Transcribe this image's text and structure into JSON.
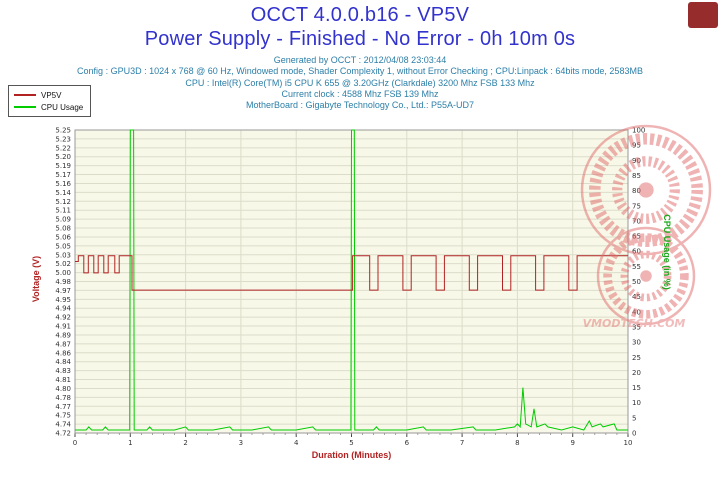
{
  "header": {
    "title_line1": "OCCT 4.0.0.b16 - VP5V",
    "title_line2": "Power Supply - Finished - No Error - 0h 10m 0s",
    "title_color": "#3232cc",
    "info_color": "#2c7fa8",
    "info_lines": [
      "Generated by OCCT : 2012/04/08 23:03:44",
      "Config : GPU3D : 1024 x 768 @ 60 Hz, Windowed mode, Shader Complexity 1, without Error Checking ; CPU:Linpack : 64bits mode, 2583MB",
      "CPU : Intel(R) Core(TM) i5 CPU K 655 @ 3.20GHz (Clarkdale) 3200 Mhz FSB 133 Mhz",
      "Current clock : 4588 Mhz FSB 139 Mhz",
      "MotherBoard : Gigabyte Technology Co., Ltd.: P55A-UD7"
    ]
  },
  "legend": {
    "items": [
      {
        "label": "VP5V",
        "color": "#b22222"
      },
      {
        "label": "CPU Usage",
        "color": "#00cc00"
      }
    ]
  },
  "watermark": {
    "text": "VMODTECH.COM",
    "color": "#e06a6a"
  },
  "chart_data": {
    "type": "line",
    "title": "OCCT 4.0.0.b16 - VP5V - Power Supply - Finished - No Error - 0h 10m 0s",
    "plot_bg": "#f8f8e8",
    "grid_color": "#dcdccb",
    "grid": true,
    "legend_position": "top-left",
    "x_axis": {
      "label": "Duration (Minutes)",
      "color": "#b22222",
      "min": 0,
      "max": 10,
      "minor_step": 0.2,
      "major_ticks": [
        "0",
        "1",
        "2",
        "3",
        "4",
        "5",
        "6",
        "7",
        "8",
        "9",
        "10"
      ]
    },
    "y_left": {
      "label": "Voltage (V)",
      "color": "#b22222",
      "min": 4.72,
      "max": 5.25,
      "ticks": [
        "5.25",
        "5.23",
        "5.22",
        "5.20",
        "5.19",
        "5.17",
        "5.16",
        "5.14",
        "5.12",
        "5.11",
        "5.09",
        "5.08",
        "5.06",
        "5.05",
        "5.03",
        "5.02",
        "5.00",
        "4.98",
        "4.97",
        "4.95",
        "4.94",
        "4.92",
        "4.91",
        "4.89",
        "4.87",
        "4.86",
        "4.84",
        "4.83",
        "4.81",
        "4.80",
        "4.78",
        "4.77",
        "4.75",
        "4.74",
        "4.72"
      ]
    },
    "y_right": {
      "label": "CPU Usage (in %)",
      "color": "#1ca81c",
      "min": 0,
      "max": 100,
      "ticks": [
        "100",
        "95",
        "90",
        "85",
        "80",
        "75",
        "70",
        "65",
        "60",
        "55",
        "50",
        "45",
        "40",
        "35",
        "30",
        "25",
        "20",
        "15",
        "10",
        "5",
        "0"
      ]
    },
    "series": [
      {
        "name": "CPU Usage",
        "axis": "right",
        "color": "#00cc00",
        "points": [
          [
            0,
            1
          ],
          [
            0.2,
            1
          ],
          [
            0.25,
            2
          ],
          [
            0.3,
            1
          ],
          [
            0.5,
            1
          ],
          [
            0.55,
            2
          ],
          [
            0.6,
            1
          ],
          [
            0.99,
            1
          ],
          [
            1.0,
            100
          ],
          [
            1.06,
            100
          ],
          [
            1.07,
            1
          ],
          [
            1.3,
            1
          ],
          [
            1.35,
            2
          ],
          [
            1.4,
            1
          ],
          [
            1.8,
            1
          ],
          [
            2.0,
            2
          ],
          [
            2.05,
            1
          ],
          [
            2.5,
            1
          ],
          [
            2.8,
            2
          ],
          [
            2.85,
            1
          ],
          [
            3.2,
            1
          ],
          [
            3.5,
            2
          ],
          [
            3.55,
            1
          ],
          [
            4.0,
            1
          ],
          [
            4.3,
            2
          ],
          [
            4.35,
            1
          ],
          [
            4.7,
            1
          ],
          [
            4.99,
            1
          ],
          [
            5.0,
            100
          ],
          [
            5.05,
            100
          ],
          [
            5.06,
            1
          ],
          [
            5.4,
            1
          ],
          [
            5.45,
            2
          ],
          [
            5.5,
            1
          ],
          [
            6.0,
            1
          ],
          [
            6.3,
            2
          ],
          [
            6.35,
            1
          ],
          [
            6.8,
            1
          ],
          [
            7.2,
            2
          ],
          [
            7.25,
            1
          ],
          [
            7.6,
            1
          ],
          [
            7.95,
            2
          ],
          [
            8.0,
            3
          ],
          [
            8.05,
            2
          ],
          [
            8.1,
            15
          ],
          [
            8.15,
            3
          ],
          [
            8.25,
            2
          ],
          [
            8.3,
            8
          ],
          [
            8.35,
            2
          ],
          [
            8.5,
            3
          ],
          [
            8.55,
            2
          ],
          [
            8.8,
            1
          ],
          [
            9.0,
            2
          ],
          [
            9.2,
            1
          ],
          [
            9.3,
            4
          ],
          [
            9.35,
            2
          ],
          [
            9.5,
            3
          ],
          [
            9.55,
            2
          ],
          [
            9.75,
            3
          ],
          [
            9.8,
            1
          ],
          [
            10,
            1
          ]
        ]
      },
      {
        "name": "VP5V",
        "axis": "left",
        "color": "#b22222",
        "points": [
          [
            0,
            5.02
          ],
          [
            0.06,
            5.02
          ],
          [
            0.06,
            5.03
          ],
          [
            0.16,
            5.03
          ],
          [
            0.16,
            5.0
          ],
          [
            0.24,
            5.0
          ],
          [
            0.24,
            5.03
          ],
          [
            0.34,
            5.03
          ],
          [
            0.34,
            5.0
          ],
          [
            0.42,
            5.0
          ],
          [
            0.42,
            5.03
          ],
          [
            0.52,
            5.03
          ],
          [
            0.52,
            5.0
          ],
          [
            0.6,
            5.0
          ],
          [
            0.6,
            5.03
          ],
          [
            0.72,
            5.03
          ],
          [
            0.72,
            5.0
          ],
          [
            0.8,
            5.0
          ],
          [
            0.8,
            5.03
          ],
          [
            1.03,
            5.03
          ],
          [
            1.03,
            4.97
          ],
          [
            5.02,
            4.97
          ],
          [
            5.02,
            5.03
          ],
          [
            5.33,
            5.03
          ],
          [
            5.33,
            4.97
          ],
          [
            5.48,
            4.97
          ],
          [
            5.48,
            5.03
          ],
          [
            5.93,
            5.03
          ],
          [
            5.93,
            4.97
          ],
          [
            6.08,
            4.97
          ],
          [
            6.08,
            5.03
          ],
          [
            6.53,
            5.03
          ],
          [
            6.53,
            4.97
          ],
          [
            6.68,
            4.97
          ],
          [
            6.68,
            5.03
          ],
          [
            7.13,
            5.03
          ],
          [
            7.13,
            4.97
          ],
          [
            7.28,
            4.97
          ],
          [
            7.28,
            5.03
          ],
          [
            7.73,
            5.03
          ],
          [
            7.73,
            4.97
          ],
          [
            7.88,
            4.97
          ],
          [
            7.88,
            5.03
          ],
          [
            8.33,
            5.03
          ],
          [
            8.33,
            4.97
          ],
          [
            8.48,
            4.97
          ],
          [
            8.48,
            5.03
          ],
          [
            8.93,
            5.03
          ],
          [
            8.93,
            4.97
          ],
          [
            9.08,
            4.97
          ],
          [
            9.08,
            5.03
          ],
          [
            10,
            5.03
          ]
        ]
      }
    ]
  }
}
